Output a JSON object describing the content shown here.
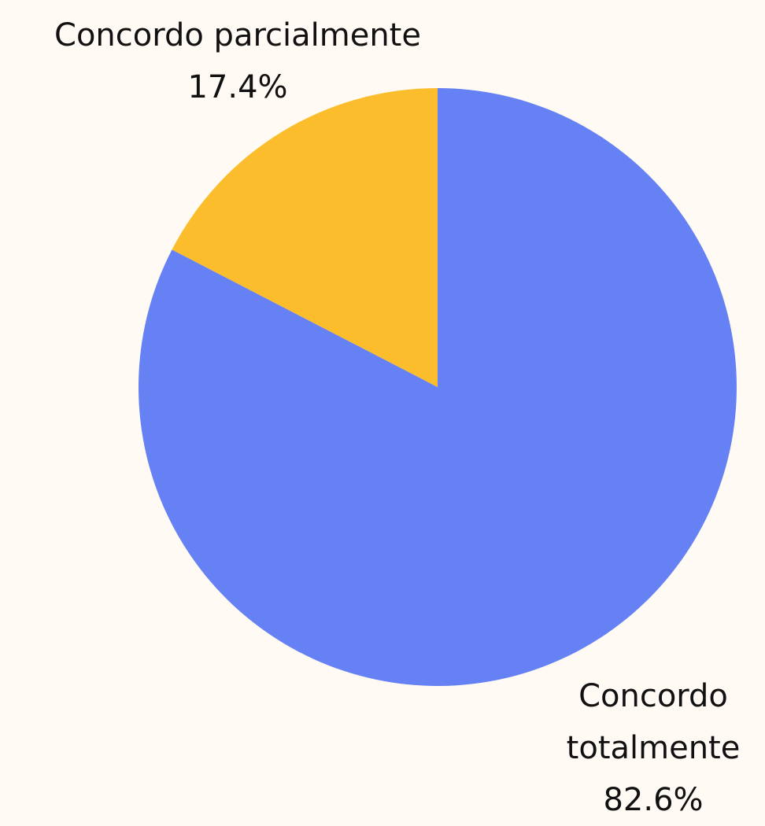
{
  "chart_data": {
    "type": "pie",
    "categories": [
      "Concordo totalmente",
      "Concordo parcialmente"
    ],
    "values": [
      82.6,
      17.4
    ],
    "value_labels": [
      "82.6%",
      "17.4%"
    ],
    "colors": [
      "#6681f3",
      "#fbbd2c"
    ]
  }
}
